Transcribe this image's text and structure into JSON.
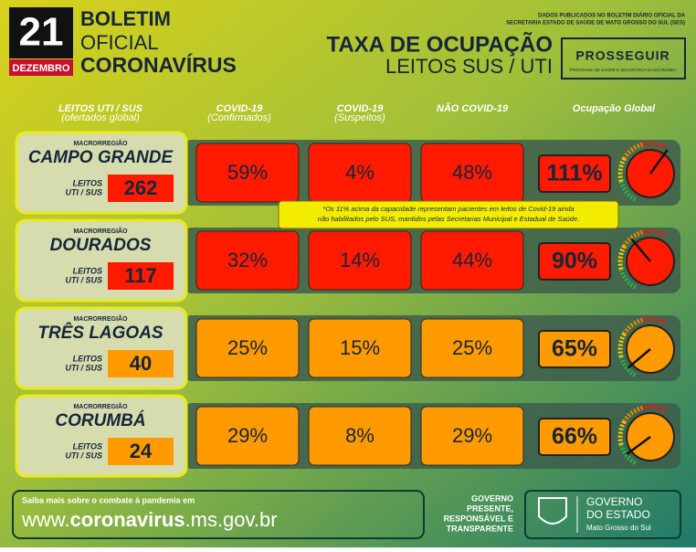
{
  "header": {
    "day": "21",
    "month": "DEZEMBRO",
    "line1": "BOLETIM",
    "line2": "OFICIAL",
    "line3": "CORONAVÍRUS",
    "source1": "DADOS PUBLICADOS NO BOLETIM DIÁRIO OFICIAL DA",
    "source2": "SECRETARIA ESTADO DE SAÚDE DE MATO GROSSO DO SUL (SES)",
    "title": "TAXA DE OCUPAÇÃO",
    "subtitle": "LEITOS SUS / UTI",
    "logo": "PROSSEGUIR",
    "logo_sub": "PROGRAMA DE SAÚDE E SEGURANÇA DA ECONOMIA"
  },
  "columns": [
    [
      "LEITOS UTI / SUS",
      "(ofertados global)"
    ],
    [
      "COVID-19",
      "(Confirmados)"
    ],
    [
      "COVID-19",
      "(Suspeitos)"
    ],
    [
      "NÃO COVID-19"
    ],
    [
      "Ocupação Global"
    ]
  ],
  "rows": [
    {
      "region": "MACRORREGIÃO",
      "name": "CAMPO GRANDE",
      "beds_label": [
        "LEITOS",
        "UTI / SUS"
      ],
      "beds": "262",
      "cells": [
        "59%",
        "4%",
        "48%"
      ],
      "global": {
        "value": 111,
        "label": "111%"
      },
      "color": "#ff1a00"
    },
    {
      "region": "MACRORREGIÃO",
      "name": "DOURADOS",
      "beds_label": [
        "LEITOS",
        "UTI / SUS"
      ],
      "beds": "117",
      "cells": [
        "32%",
        "14%",
        "44%"
      ],
      "global": {
        "value": 90,
        "label": "90%"
      },
      "color": "#ff1a00"
    },
    {
      "region": "MACRORREGIÃO",
      "name": "TRÊS LAGOAS",
      "beds_label": [
        "LEITOS",
        "UTI / SUS"
      ],
      "beds": "40",
      "cells": [
        "25%",
        "15%",
        "25%"
      ],
      "global": {
        "value": 65,
        "label": "65%"
      },
      "color": "#ff9a00"
    },
    {
      "region": "MACRORREGIÃO",
      "name": "CORUMBÁ",
      "beds_label": [
        "LEITOS",
        "UTI / SUS"
      ],
      "beds": "24",
      "cells": [
        "29%",
        "8%",
        "29%"
      ],
      "global": {
        "value": 66,
        "label": "66%"
      },
      "color": "#ff9a00"
    }
  ],
  "note": [
    "*Os 11% acima da capacidade representam pacientes em leitos de Covid-19 ainda",
    "não habilitados pelo SUS, mantidos pelas Secretarias Municipal e Estadual de Saúde."
  ],
  "footer": {
    "info": "Saiba mais sobre o combate à pandemia em",
    "url": [
      "www.",
      "coronavirus",
      ".ms.gov.br"
    ],
    "slogan": [
      "GOVERNO",
      "PRESENTE,",
      "RESPONSÁVEL E",
      "TRANSPARENTE"
    ],
    "gov": [
      "GOVERNO",
      "DO ESTADO"
    ],
    "state": "Mato Grosso do Sul"
  }
}
